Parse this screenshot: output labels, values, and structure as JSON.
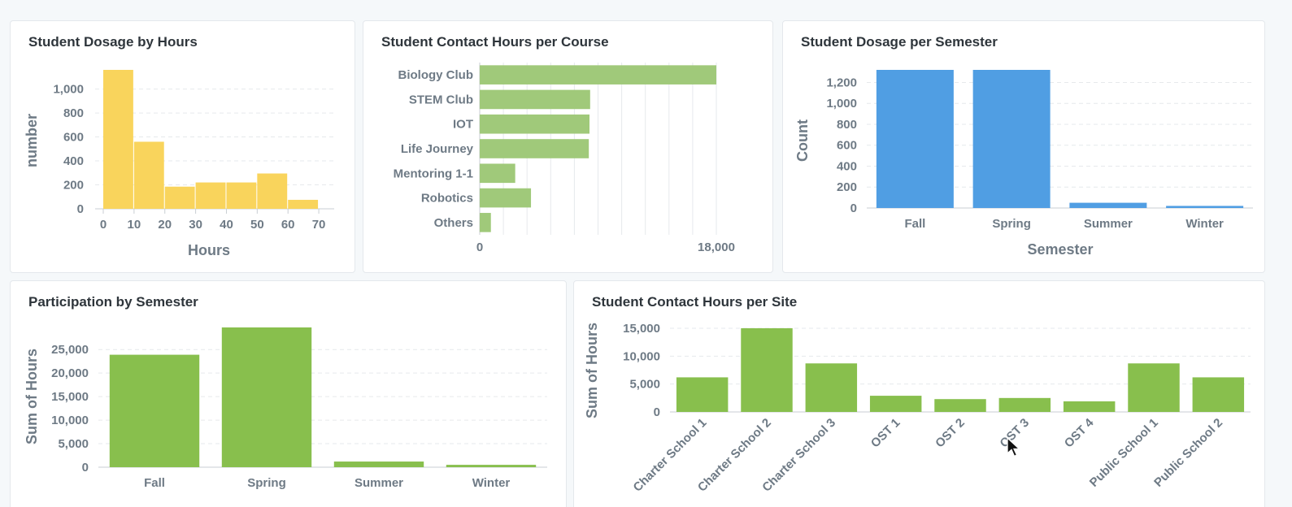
{
  "colors": {
    "yellow": "#f9d45c",
    "green": "#88bf4d",
    "light_green": "#a0c97a",
    "blue": "#509ee3",
    "grid": "#e6e9ec",
    "axis": "#c9ced3",
    "text": "#6e7a85"
  },
  "chart_data": [
    {
      "id": "dosage-hours",
      "type": "bar",
      "title": "Student Dosage by Hours",
      "xlabel": "Hours",
      "ylabel": "number",
      "bins": [
        [
          0,
          10
        ],
        [
          10,
          20
        ],
        [
          20,
          30
        ],
        [
          30,
          40
        ],
        [
          40,
          50
        ],
        [
          50,
          60
        ],
        [
          60,
          70
        ]
      ],
      "values": [
        1160,
        560,
        185,
        220,
        220,
        295,
        75
      ],
      "xticks": [
        "0",
        "10",
        "20",
        "30",
        "40",
        "50",
        "60",
        "70"
      ],
      "yticks": [
        "0",
        "200",
        "400",
        "600",
        "800",
        "1,000"
      ],
      "ylim": [
        0,
        1160
      ],
      "color": "#f9d45c"
    },
    {
      "id": "contact-course",
      "type": "bar",
      "orientation": "horizontal",
      "title": "Student Contact Hours per Course",
      "categories": [
        "Biology Club",
        "STEM Club",
        "IOT",
        "Life Journey",
        "Mentoring 1-1",
        "Robotics",
        "Others"
      ],
      "values": [
        18000,
        8400,
        8350,
        8300,
        2700,
        3900,
        850
      ],
      "xticks": [
        "0",
        "18,000"
      ],
      "xlim": [
        0,
        18000
      ],
      "color": "#a0c97a"
    },
    {
      "id": "dosage-semester",
      "type": "bar",
      "title": "Student Dosage per Semester",
      "xlabel": "Semester",
      "ylabel": "Count",
      "categories": [
        "Fall",
        "Spring",
        "Summer",
        "Winter"
      ],
      "values": [
        1320,
        1320,
        50,
        20
      ],
      "yticks": [
        "0",
        "200",
        "400",
        "600",
        "800",
        "1,000",
        "1,200"
      ],
      "ylim": [
        0,
        1320
      ],
      "color": "#509ee3"
    },
    {
      "id": "participation-semester",
      "type": "bar",
      "title": "Participation by Semester",
      "xlabel": "",
      "ylabel": "Sum of Hours",
      "categories": [
        "Fall",
        "Spring",
        "Summer",
        "Winter"
      ],
      "values": [
        23900,
        29700,
        1200,
        500
      ],
      "yticks": [
        "0",
        "5,000",
        "10,000",
        "15,000",
        "20,000",
        "25,000"
      ],
      "ylim": [
        0,
        29700
      ],
      "color": "#88bf4d"
    },
    {
      "id": "contact-site",
      "type": "bar",
      "title": "Student Contact Hours per Site",
      "xlabel": "",
      "ylabel": "Sum of Hours",
      "categories": [
        "Charter School 1",
        "Charter School 2",
        "Charter School 3",
        "OST 1",
        "OST 2",
        "OST 3",
        "OST 4",
        "Public School 1",
        "Public School 2"
      ],
      "values": [
        6200,
        15000,
        8700,
        2900,
        2300,
        2500,
        1900,
        8700,
        6200
      ],
      "yticks": [
        "0",
        "5,000",
        "10,000",
        "15,000"
      ],
      "ylim": [
        0,
        15000
      ],
      "color": "#88bf4d"
    }
  ]
}
